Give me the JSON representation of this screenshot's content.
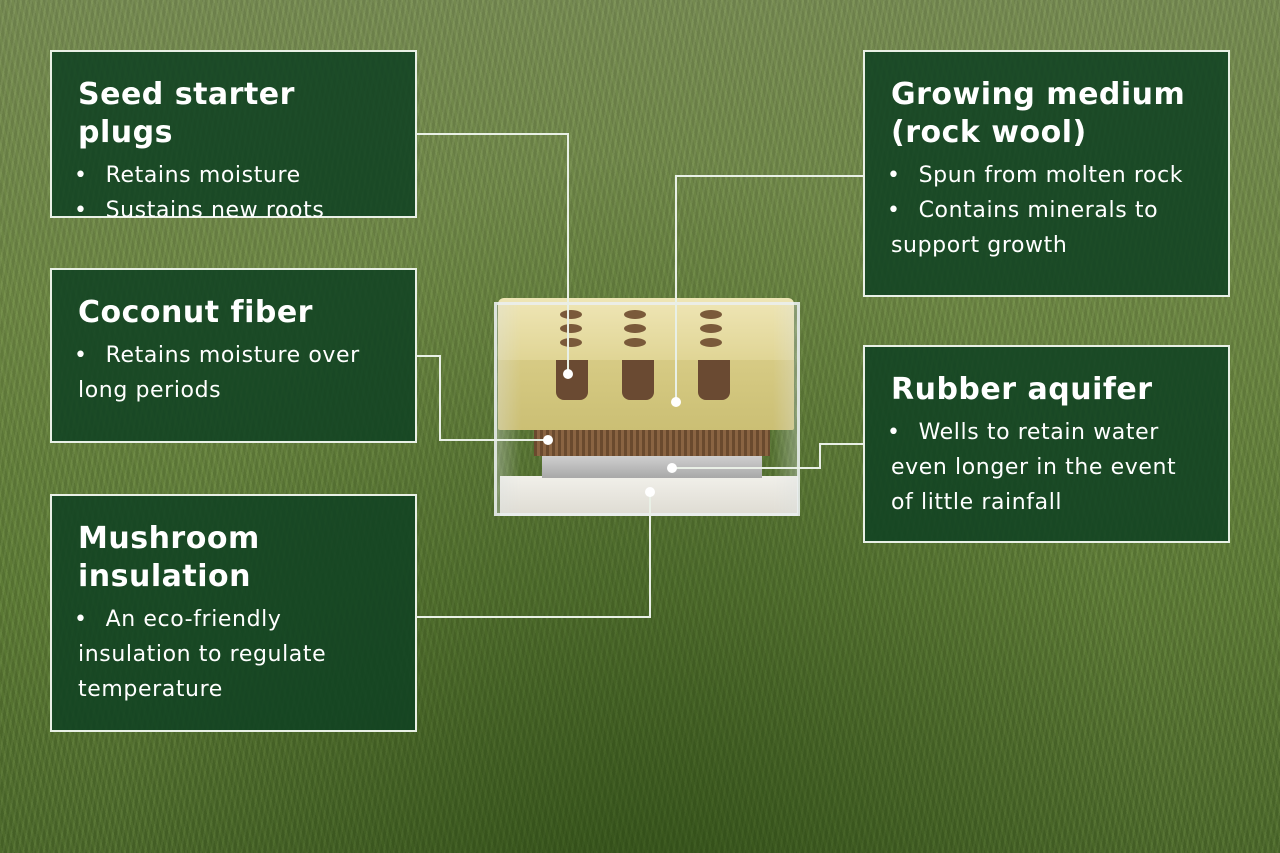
{
  "callouts": {
    "seed_starter_plugs": {
      "title": "Seed starter plugs",
      "bullets": [
        "Retains moisture",
        "Sustains new roots"
      ]
    },
    "coconut_fiber": {
      "title": "Coconut fiber",
      "bullets": [
        "Retains moisture over long periods"
      ]
    },
    "mushroom_insulation": {
      "title": "Mushroom insulation",
      "bullets": [
        "An eco-friendly insulation to regulate temperature"
      ]
    },
    "growing_medium": {
      "title": "Growing medium (rock wool)",
      "bullets": [
        "Spun from molten rock",
        "Contains minerals to support growth"
      ]
    },
    "rubber_aquifer": {
      "title": "Rubber aquifer",
      "bullets": [
        "Wells to retain water even longer in the event of little rainfall"
      ]
    }
  },
  "colors": {
    "panel": "#104222",
    "text": "#ffffff",
    "connector": "#e9f0e6",
    "grass": "#6f8a45"
  }
}
